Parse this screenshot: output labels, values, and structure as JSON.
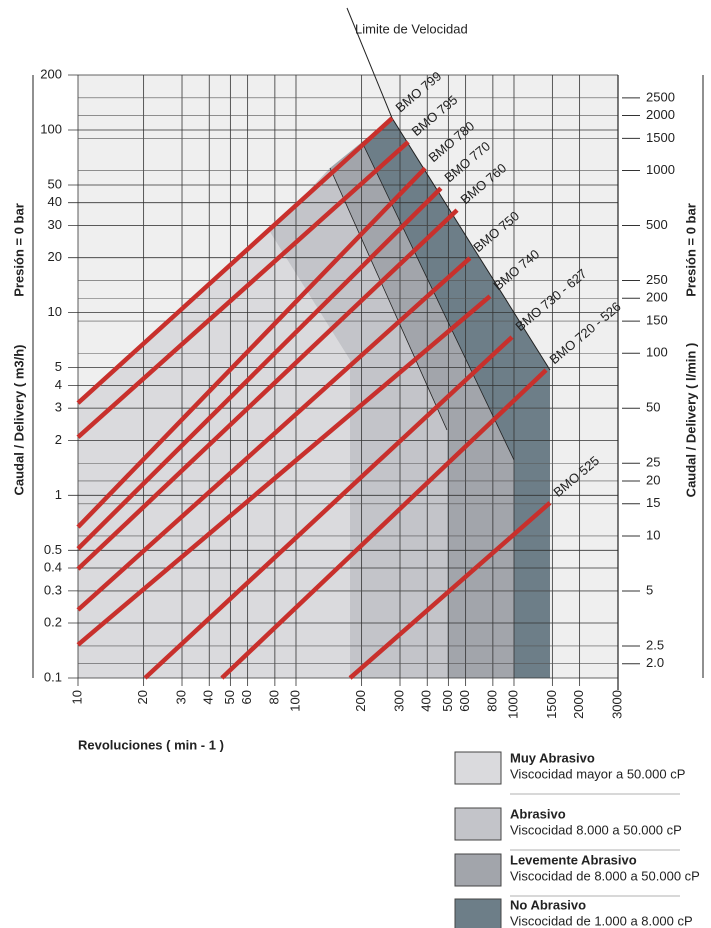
{
  "chart_data": {
    "type": "line",
    "annotation": "Limite de Velocidad",
    "x_label": "Revoluciones ( min - 1 )",
    "y_label": "Caudal / Delivery ( m3/h)",
    "y_label_note": "Presión = 0 bar",
    "y2_label": "Caudal / Delivery ( l/min )",
    "y2_label_note": "Presión = 0 bar",
    "log_x": true,
    "log_y": true,
    "grid": true,
    "xlim": [
      10,
      3000
    ],
    "xticks": [
      10,
      20,
      30,
      40,
      50,
      60,
      80,
      100,
      200,
      300,
      400,
      500,
      600,
      800,
      1000,
      1500,
      2000,
      3000
    ],
    "ylim": [
      0.1,
      200
    ],
    "yticks": [
      0.1,
      0.2,
      0.3,
      0.4,
      0.5,
      1,
      2,
      3,
      4,
      5,
      10,
      20,
      30,
      40,
      50,
      100,
      200
    ],
    "y2lim": [
      1.67,
      3333
    ],
    "y2ticks": [
      {
        "value": 2,
        "label": "2.0"
      },
      2.5,
      5,
      10,
      15,
      20,
      25,
      50,
      100,
      150,
      200,
      250,
      500,
      1000,
      1500,
      2000,
      2500
    ],
    "series": [
      {
        "name": "BMO 799",
        "color": "#c8302c",
        "x": [
          10,
          276
        ],
        "values": [
          3.2,
          116
        ]
      },
      {
        "name": "BMO 795",
        "color": "#c8302c",
        "x": [
          10,
          327
        ],
        "values": [
          2.08,
          86
        ]
      },
      {
        "name": "BMO 780",
        "color": "#c8302c",
        "x": [
          10,
          391
        ],
        "values": [
          0.67,
          61.8
        ]
      },
      {
        "name": "BMO 770",
        "color": "#c8302c",
        "x": [
          10,
          462
        ],
        "values": [
          0.51,
          48
        ]
      },
      {
        "name": "BMO 760",
        "color": "#c8302c",
        "x": [
          10,
          548
        ],
        "values": [
          0.395,
          36.4
        ]
      },
      {
        "name": "BMO 750",
        "color": "#c8302c",
        "x": [
          10,
          628
        ],
        "values": [
          0.236,
          19.9
        ]
      },
      {
        "name": "BMO 740",
        "color": "#c8302c",
        "x": [
          10,
          776
        ],
        "values": [
          0.152,
          12.3
        ]
      },
      {
        "name": "BMO 730 - 627",
        "color": "#c8302c",
        "x": [
          20.3,
          979
        ],
        "values": [
          0.1,
          7.35
        ]
      },
      {
        "name": "BMO 720 - 526",
        "color": "#c8302c",
        "x": [
          45.7,
          1403
        ],
        "values": [
          0.1,
          4.85
        ]
      },
      {
        "name": "BMO 525",
        "color": "#c8302c",
        "x": [
          177,
          1462
        ],
        "values": [
          0.1,
          0.91
        ]
      }
    ],
    "legend": [
      {
        "name": "Muy Abrasivo",
        "description": "Viscocidad mayor a 50.000 cP",
        "color": "#dadadd"
      },
      {
        "name": "Abrasivo",
        "description": "Viscocidad 8.000 a 50.000 cP",
        "color": "#c3c4c9"
      },
      {
        "name": "Levemente Abrasivo",
        "description": "Viscocidad de 8.000 a 50.000 cP",
        "color": "#a2a5ab"
      },
      {
        "name": "No Abrasivo",
        "description": "Viscocidad de 1.000 a 8.000 cP",
        "color": "#6d7e88"
      }
    ]
  }
}
